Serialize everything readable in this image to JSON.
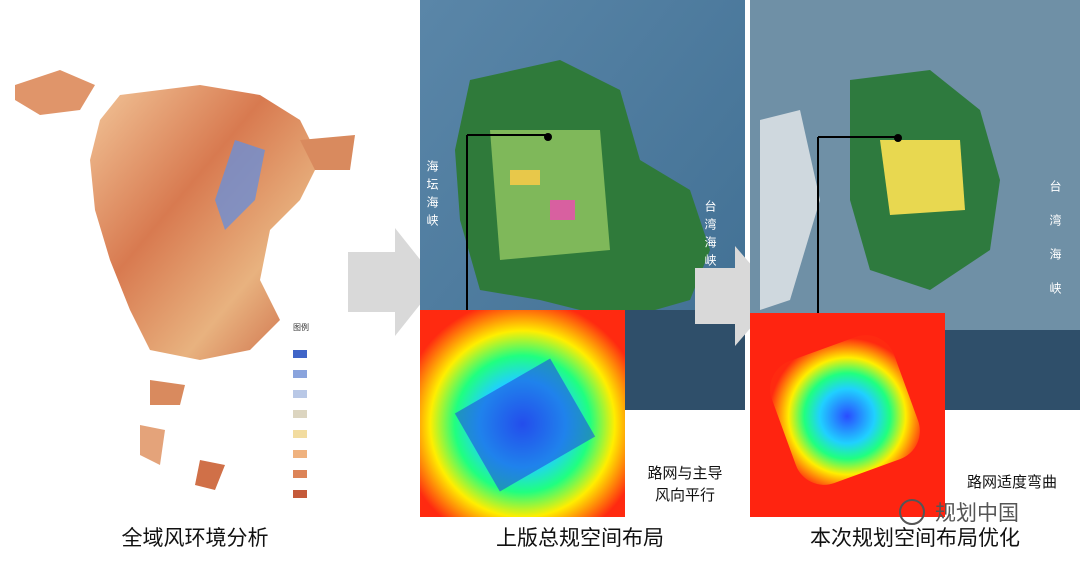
{
  "panels": [
    {
      "caption": "全域风环境分析",
      "legend_title": "图例"
    },
    {
      "caption": "上版总规空间布局",
      "note": [
        "路网与主导",
        "风向平行"
      ],
      "map_labels": [
        "海坛海峡",
        "台湾海峡"
      ]
    },
    {
      "caption": "本次规划空间布局优化",
      "note": [
        "路网适度弯曲"
      ],
      "map_labels": [
        "台湾海峡"
      ]
    }
  ],
  "watermark": "规划中国"
}
